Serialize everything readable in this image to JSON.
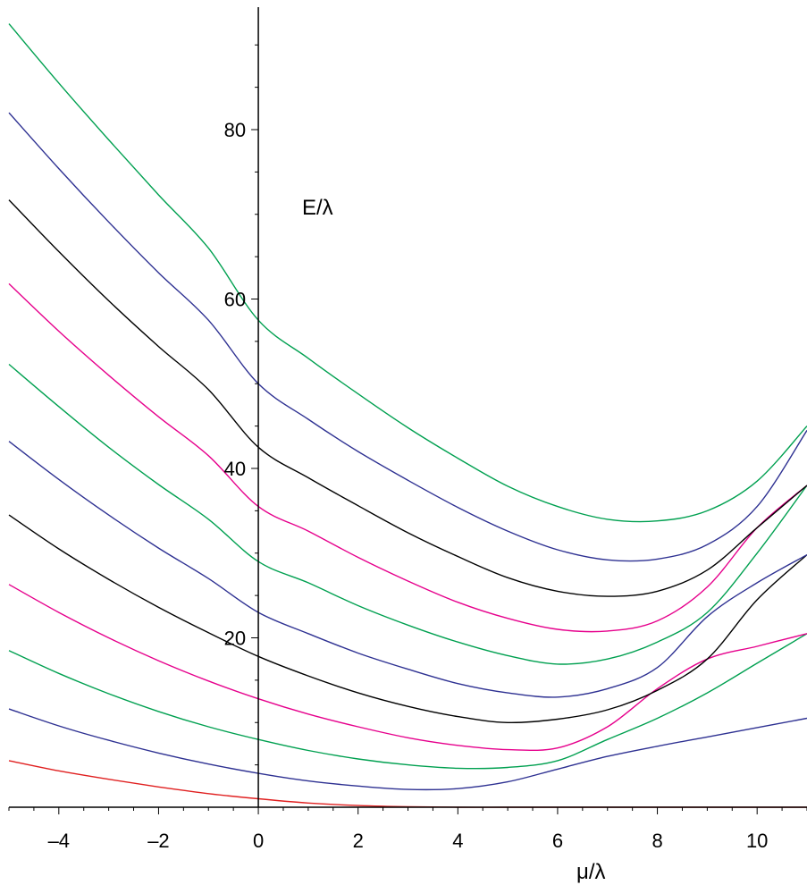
{
  "chart_data": {
    "type": "line",
    "title": "",
    "xlabel": "μ/λ",
    "ylabel": "E/λ",
    "xlim": [
      -5,
      11
    ],
    "ylim": [
      0,
      95
    ],
    "x_ticks": [
      -4,
      -2,
      0,
      2,
      4,
      6,
      8,
      10
    ],
    "x_tick_labels": [
      "–4",
      "–2",
      "0",
      "2",
      "4",
      "6",
      "8",
      "10"
    ],
    "y_ticks": [
      20,
      40,
      60,
      80
    ],
    "y_tick_labels": [
      "20",
      "40",
      "60",
      "80"
    ],
    "grid": false,
    "legend": "none",
    "x": [
      -5,
      -4,
      -3,
      -2,
      -1,
      0,
      1,
      2,
      3,
      4,
      5,
      6,
      7,
      8,
      9,
      10,
      11
    ],
    "series": [
      {
        "color": "#e02020",
        "values": [
          5.5,
          4.3,
          3.3,
          2.4,
          1.6,
          1.0,
          0.5,
          0.2,
          0.05,
          0,
          0,
          0,
          0,
          0,
          0,
          0,
          0
        ]
      },
      {
        "color": "#2e3192",
        "values": [
          11.6,
          9.6,
          7.9,
          6.4,
          5.1,
          4.0,
          3.1,
          2.5,
          2.1,
          2.2,
          3.0,
          4.5,
          6.0,
          7.2,
          8.3,
          9.4,
          10.5
        ]
      },
      {
        "color": "#00a050",
        "values": [
          18.5,
          15.8,
          13.4,
          11.3,
          9.5,
          8.0,
          6.7,
          5.7,
          5.0,
          4.6,
          4.7,
          5.5,
          8.0,
          10.5,
          13.5,
          17.0,
          20.5
        ]
      },
      {
        "color": "#e6008c",
        "values": [
          26.3,
          23.0,
          20.0,
          17.3,
          14.9,
          12.8,
          11.0,
          9.5,
          8.2,
          7.3,
          6.8,
          7.0,
          9.5,
          14.0,
          17.5,
          19.0,
          20.5
        ]
      },
      {
        "color": "#000000",
        "values": [
          34.5,
          30.5,
          26.9,
          23.6,
          20.6,
          17.8,
          15.5,
          13.5,
          11.9,
          10.7,
          10.0,
          10.4,
          11.5,
          13.8,
          17.5,
          24.5,
          29.8
        ]
      },
      {
        "color": "#2e3192",
        "values": [
          43.2,
          38.7,
          34.5,
          30.6,
          27.0,
          23.0,
          20.5,
          18.2,
          16.3,
          14.6,
          13.5,
          13.0,
          14.0,
          16.5,
          22.5,
          26.5,
          29.8
        ]
      },
      {
        "color": "#00a050",
        "values": [
          52.3,
          47.3,
          42.5,
          38.1,
          34.0,
          29.0,
          26.5,
          23.8,
          21.5,
          19.5,
          17.9,
          16.9,
          17.5,
          19.5,
          23.0,
          30.0,
          38.0
        ]
      },
      {
        "color": "#e6008c",
        "values": [
          61.8,
          56.2,
          51.0,
          46.1,
          41.5,
          35.5,
          32.6,
          29.5,
          26.7,
          24.2,
          22.3,
          21.0,
          20.8,
          22.0,
          26.0,
          33.0,
          38.0
        ]
      },
      {
        "color": "#000000",
        "values": [
          71.7,
          65.6,
          59.8,
          54.4,
          49.3,
          42.5,
          38.9,
          35.6,
          32.4,
          29.6,
          27.1,
          25.5,
          24.9,
          25.5,
          28.0,
          33.0,
          38.0
        ]
      },
      {
        "color": "#2e3192",
        "values": [
          82.0,
          75.4,
          69.1,
          63.1,
          57.5,
          50.0,
          45.8,
          42.0,
          38.6,
          35.4,
          32.6,
          30.4,
          29.2,
          29.3,
          31.0,
          35.5,
          44.5
        ]
      },
      {
        "color": "#00a050",
        "values": [
          92.5,
          85.5,
          78.8,
          72.3,
          66.0,
          57.5,
          53.0,
          48.8,
          44.8,
          41.2,
          37.9,
          35.5,
          34.0,
          33.8,
          35.0,
          38.5,
          45.0
        ]
      }
    ]
  }
}
